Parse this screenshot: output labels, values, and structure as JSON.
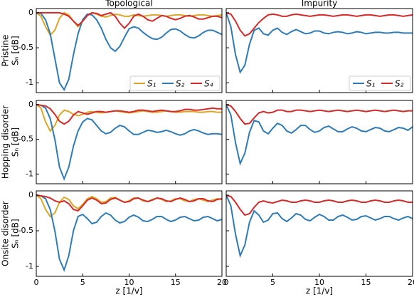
{
  "chart_data": [
    {
      "type": "line",
      "title": "Topological",
      "row_label": "Pristine",
      "ylabel": "Sₙ  [dB]",
      "legend": "lower right",
      "x": [
        0,
        0.5,
        1,
        1.5,
        2,
        2.5,
        3,
        3.5,
        4,
        4.5,
        5,
        5.5,
        6,
        6.5,
        7,
        7.5,
        8,
        8.5,
        9,
        9.5,
        10,
        10.5,
        11,
        11.5,
        12,
        12.5,
        13,
        13.5,
        14,
        14.5,
        15,
        15.5,
        16,
        16.5,
        17,
        17.5,
        18,
        18.5,
        19,
        19.5,
        20
      ],
      "xlim": [
        0,
        20
      ],
      "xticks": [
        0,
        5,
        10,
        15,
        20
      ],
      "ylim": [
        -1.14,
        0.06
      ],
      "yticks": [
        0,
        -0.5,
        -1
      ],
      "series": [
        {
          "name": "S₁",
          "color": "#dba728",
          "values": [
            0,
            -0.05,
            -0.2,
            -0.32,
            -0.25,
            -0.08,
            0,
            -0.03,
            -0.12,
            -0.2,
            -0.12,
            -0.03,
            0,
            -0.02,
            -0.05,
            -0.06,
            -0.04,
            -0.02,
            -0.03,
            -0.05,
            -0.05,
            -0.03,
            -0.04,
            -0.05,
            -0.04,
            -0.03,
            -0.03,
            -0.04,
            -0.05,
            -0.04,
            -0.03,
            -0.03,
            -0.04,
            -0.05,
            -0.04,
            -0.03,
            -0.03,
            -0.04,
            -0.05,
            -0.04,
            -0.03
          ]
        },
        {
          "name": "S₂",
          "color": "#2f7bb6",
          "values": [
            0,
            -0.01,
            -0.1,
            -0.3,
            -0.65,
            -1.0,
            -1.1,
            -0.95,
            -0.6,
            -0.3,
            -0.1,
            -0.02,
            -0.03,
            -0.1,
            -0.22,
            -0.38,
            -0.5,
            -0.55,
            -0.48,
            -0.35,
            -0.23,
            -0.2,
            -0.22,
            -0.28,
            -0.33,
            -0.37,
            -0.38,
            -0.35,
            -0.29,
            -0.24,
            -0.23,
            -0.26,
            -0.31,
            -0.35,
            -0.36,
            -0.33,
            -0.28,
            -0.25,
            -0.25,
            -0.28,
            -0.31
          ]
        },
        {
          "name": "S₄",
          "color": "#d42a2a",
          "values": [
            0,
            0,
            0,
            0,
            0,
            0,
            -0.02,
            -0.05,
            -0.12,
            -0.18,
            -0.12,
            -0.04,
            0,
            -0.01,
            -0.04,
            -0.02,
            0,
            -0.05,
            -0.15,
            -0.22,
            -0.15,
            -0.05,
            -0.02,
            -0.05,
            -0.1,
            -0.12,
            -0.08,
            -0.04,
            -0.05,
            -0.08,
            -0.1,
            -0.08,
            -0.05,
            -0.04,
            -0.06,
            -0.09,
            -0.09,
            -0.07,
            -0.05,
            -0.05,
            -0.07
          ]
        }
      ]
    },
    {
      "type": "line",
      "title": "Impurity",
      "legend": "lower right",
      "x": [
        0,
        0.5,
        1,
        1.5,
        2,
        2.5,
        3,
        3.5,
        4,
        4.5,
        5,
        5.5,
        6,
        6.5,
        7,
        7.5,
        8,
        8.5,
        9,
        9.5,
        10,
        10.5,
        11,
        11.5,
        12,
        12.5,
        13,
        13.5,
        14,
        14.5,
        15,
        15.5,
        16,
        16.5,
        17,
        17.5,
        18,
        18.5,
        19,
        19.5,
        20
      ],
      "xlim": [
        0,
        20
      ],
      "xticks": [
        0,
        5,
        10,
        15,
        20
      ],
      "ylim": [
        -1.14,
        0.06
      ],
      "yticks": [
        0,
        -0.5,
        -1
      ],
      "series": [
        {
          "name": "S₁",
          "color": "#2f7bb6",
          "values": [
            0,
            -0.2,
            -0.6,
            -0.85,
            -0.75,
            -0.45,
            -0.25,
            -0.22,
            -0.3,
            -0.32,
            -0.25,
            -0.22,
            -0.28,
            -0.31,
            -0.27,
            -0.24,
            -0.27,
            -0.3,
            -0.29,
            -0.26,
            -0.26,
            -0.29,
            -0.3,
            -0.28,
            -0.27,
            -0.28,
            -0.3,
            -0.29,
            -0.27,
            -0.28,
            -0.3,
            -0.29,
            -0.28,
            -0.28,
            -0.29,
            -0.29,
            -0.28,
            -0.28,
            -0.29,
            -0.29,
            -0.29
          ]
        },
        {
          "name": "S₂",
          "color": "#d42a2a",
          "values": [
            0,
            -0.02,
            -0.12,
            -0.25,
            -0.33,
            -0.3,
            -0.22,
            -0.14,
            -0.08,
            -0.03,
            -0.02,
            -0.03,
            -0.05,
            -0.05,
            -0.03,
            -0.02,
            -0.03,
            -0.04,
            -0.05,
            -0.04,
            -0.03,
            -0.03,
            -0.04,
            -0.05,
            -0.04,
            -0.03,
            -0.03,
            -0.04,
            -0.05,
            -0.04,
            -0.03,
            -0.03,
            -0.04,
            -0.05,
            -0.04,
            -0.03,
            -0.03,
            -0.04,
            -0.05,
            -0.04,
            -0.03
          ]
        }
      ]
    },
    {
      "type": "line",
      "row_label": "Hopping disorder",
      "ylabel": "Sₙ  [dB]",
      "x": [
        0,
        0.5,
        1,
        1.5,
        2,
        2.5,
        3,
        3.5,
        4,
        4.5,
        5,
        5.5,
        6,
        6.5,
        7,
        7.5,
        8,
        8.5,
        9,
        9.5,
        10,
        10.5,
        11,
        11.5,
        12,
        12.5,
        13,
        13.5,
        14,
        14.5,
        15,
        15.5,
        16,
        16.5,
        17,
        17.5,
        18,
        18.5,
        19,
        19.5,
        20
      ],
      "xlim": [
        0,
        20
      ],
      "xticks": [
        0,
        5,
        10,
        15,
        20
      ],
      "ylim": [
        -1.14,
        0.06
      ],
      "yticks": [
        0,
        -0.5,
        -1
      ],
      "series": [
        {
          "color": "#dba728",
          "values": [
            0,
            -0.05,
            -0.25,
            -0.38,
            -0.3,
            -0.15,
            -0.08,
            -0.1,
            -0.14,
            -0.16,
            -0.14,
            -0.11,
            -0.1,
            -0.11,
            -0.12,
            -0.11,
            -0.1,
            -0.09,
            -0.1,
            -0.11,
            -0.12,
            -0.11,
            -0.1,
            -0.09,
            -0.1,
            -0.11,
            -0.11,
            -0.1,
            -0.09,
            -0.1,
            -0.11,
            -0.11,
            -0.1,
            -0.1,
            -0.1,
            -0.11,
            -0.11,
            -0.1,
            -0.1,
            -0.11,
            -0.11
          ]
        },
        {
          "color": "#2f7bb6",
          "values": [
            0,
            -0.01,
            -0.05,
            -0.2,
            -0.5,
            -0.9,
            -1.07,
            -0.9,
            -0.6,
            -0.38,
            -0.25,
            -0.2,
            -0.22,
            -0.3,
            -0.38,
            -0.42,
            -0.4,
            -0.34,
            -0.3,
            -0.32,
            -0.38,
            -0.43,
            -0.43,
            -0.4,
            -0.37,
            -0.38,
            -0.4,
            -0.39,
            -0.37,
            -0.39,
            -0.42,
            -0.44,
            -0.42,
            -0.38,
            -0.36,
            -0.38,
            -0.41,
            -0.43,
            -0.42,
            -0.42,
            -0.43
          ]
        },
        {
          "color": "#d42a2a",
          "values": [
            0,
            -0.01,
            -0.02,
            -0.06,
            -0.14,
            -0.24,
            -0.28,
            -0.24,
            -0.15,
            -0.1,
            -0.12,
            -0.14,
            -0.12,
            -0.1,
            -0.1,
            -0.11,
            -0.1,
            -0.09,
            -0.09,
            -0.1,
            -0.11,
            -0.1,
            -0.08,
            -0.08,
            -0.09,
            -0.1,
            -0.09,
            -0.08,
            -0.09,
            -0.1,
            -0.1,
            -0.09,
            -0.07,
            -0.07,
            -0.08,
            -0.08,
            -0.07,
            -0.06,
            -0.05,
            -0.06,
            -0.06
          ]
        }
      ]
    },
    {
      "type": "line",
      "x": [
        0,
        0.5,
        1,
        1.5,
        2,
        2.5,
        3,
        3.5,
        4,
        4.5,
        5,
        5.5,
        6,
        6.5,
        7,
        7.5,
        8,
        8.5,
        9,
        9.5,
        10,
        10.5,
        11,
        11.5,
        12,
        12.5,
        13,
        13.5,
        14,
        14.5,
        15,
        15.5,
        16,
        16.5,
        17,
        17.5,
        18,
        18.5,
        19,
        19.5,
        20
      ],
      "xlim": [
        0,
        20
      ],
      "xticks": [
        0,
        5,
        10,
        15,
        20
      ],
      "ylim": [
        -1.14,
        0.06
      ],
      "yticks": [
        0,
        -0.5,
        -1
      ],
      "series": [
        {
          "color": "#2f7bb6",
          "values": [
            0,
            -0.15,
            -0.55,
            -0.85,
            -0.7,
            -0.4,
            -0.23,
            -0.25,
            -0.38,
            -0.42,
            -0.34,
            -0.27,
            -0.3,
            -0.38,
            -0.41,
            -0.36,
            -0.3,
            -0.3,
            -0.36,
            -0.4,
            -0.38,
            -0.33,
            -0.31,
            -0.35,
            -0.39,
            -0.39,
            -0.35,
            -0.32,
            -0.34,
            -0.38,
            -0.39,
            -0.36,
            -0.33,
            -0.34,
            -0.38,
            -0.39,
            -0.36,
            -0.33,
            -0.34,
            -0.37,
            -0.32
          ]
        },
        {
          "color": "#d42a2a",
          "values": [
            0,
            -0.02,
            -0.1,
            -0.2,
            -0.28,
            -0.27,
            -0.19,
            -0.12,
            -0.1,
            -0.12,
            -0.11,
            -0.08,
            -0.08,
            -0.1,
            -0.1,
            -0.08,
            -0.08,
            -0.09,
            -0.1,
            -0.09,
            -0.08,
            -0.09,
            -0.1,
            -0.09,
            -0.08,
            -0.09,
            -0.1,
            -0.09,
            -0.08,
            -0.09,
            -0.1,
            -0.09,
            -0.08,
            -0.09,
            -0.1,
            -0.09,
            -0.08,
            -0.09,
            -0.1,
            -0.09,
            -0.09
          ]
        }
      ]
    },
    {
      "type": "line",
      "row_label": "Onsite disorder",
      "ylabel": "Sₙ  [dB]",
      "xlabel": "z   [1/v]",
      "x": [
        0,
        0.5,
        1,
        1.5,
        2,
        2.5,
        3,
        3.5,
        4,
        4.5,
        5,
        5.5,
        6,
        6.5,
        7,
        7.5,
        8,
        8.5,
        9,
        9.5,
        10,
        10.5,
        11,
        11.5,
        12,
        12.5,
        13,
        13.5,
        14,
        14.5,
        15,
        15.5,
        16,
        16.5,
        17,
        17.5,
        18,
        18.5,
        19,
        19.5,
        20
      ],
      "xlim": [
        0,
        20
      ],
      "xticks": [
        0,
        5,
        10,
        15,
        20
      ],
      "ylim": [
        -1.14,
        0.06
      ],
      "yticks": [
        0,
        -0.5,
        -1
      ],
      "series": [
        {
          "color": "#dba728",
          "values": [
            0,
            -0.05,
            -0.2,
            -0.3,
            -0.25,
            -0.1,
            -0.03,
            -0.06,
            -0.15,
            -0.19,
            -0.13,
            -0.05,
            -0.02,
            -0.05,
            -0.1,
            -0.09,
            -0.04,
            -0.03,
            -0.07,
            -0.1,
            -0.08,
            -0.04,
            -0.04,
            -0.08,
            -0.09,
            -0.06,
            -0.04,
            -0.06,
            -0.09,
            -0.08,
            -0.05,
            -0.05,
            -0.08,
            -0.09,
            -0.06,
            -0.05,
            -0.07,
            -0.09,
            -0.07,
            -0.05,
            -0.06
          ]
        },
        {
          "color": "#2f7bb6",
          "values": [
            0,
            -0.01,
            -0.05,
            -0.2,
            -0.5,
            -0.9,
            -1.05,
            -0.85,
            -0.5,
            -0.3,
            -0.27,
            -0.33,
            -0.4,
            -0.38,
            -0.3,
            -0.25,
            -0.28,
            -0.35,
            -0.39,
            -0.37,
            -0.31,
            -0.28,
            -0.31,
            -0.36,
            -0.37,
            -0.34,
            -0.3,
            -0.3,
            -0.34,
            -0.37,
            -0.35,
            -0.31,
            -0.3,
            -0.33,
            -0.36,
            -0.35,
            -0.31,
            -0.3,
            -0.33,
            -0.36,
            -0.34
          ]
        },
        {
          "color": "#d42a2a",
          "values": [
            0,
            -0.01,
            -0.02,
            -0.04,
            -0.08,
            -0.1,
            -0.08,
            -0.12,
            -0.2,
            -0.22,
            -0.15,
            -0.07,
            -0.04,
            -0.07,
            -0.12,
            -0.11,
            -0.06,
            -0.04,
            -0.07,
            -0.1,
            -0.09,
            -0.05,
            -0.04,
            -0.07,
            -0.09,
            -0.07,
            -0.04,
            -0.05,
            -0.08,
            -0.09,
            -0.06,
            -0.04,
            -0.06,
            -0.09,
            -0.08,
            -0.05,
            -0.05,
            -0.08,
            -0.09,
            -0.06,
            -0.05
          ]
        }
      ]
    },
    {
      "type": "line",
      "xlabel": "z   [1/v]",
      "x": [
        0,
        0.5,
        1,
        1.5,
        2,
        2.5,
        3,
        3.5,
        4,
        4.5,
        5,
        5.5,
        6,
        6.5,
        7,
        7.5,
        8,
        8.5,
        9,
        9.5,
        10,
        10.5,
        11,
        11.5,
        12,
        12.5,
        13,
        13.5,
        14,
        14.5,
        15,
        15.5,
        16,
        16.5,
        17,
        17.5,
        18,
        18.5,
        19,
        19.5,
        20
      ],
      "xlim": [
        0,
        20
      ],
      "xticks": [
        0,
        5,
        10,
        15,
        20
      ],
      "ylim": [
        -1.14,
        0.06
      ],
      "yticks": [
        0,
        -0.5,
        -1
      ],
      "series": [
        {
          "color": "#2f7bb6",
          "values": [
            0,
            -0.15,
            -0.55,
            -0.85,
            -0.7,
            -0.38,
            -0.22,
            -0.28,
            -0.38,
            -0.35,
            -0.26,
            -0.25,
            -0.33,
            -0.37,
            -0.32,
            -0.26,
            -0.28,
            -0.34,
            -0.36,
            -0.31,
            -0.27,
            -0.3,
            -0.35,
            -0.35,
            -0.3,
            -0.28,
            -0.31,
            -0.35,
            -0.34,
            -0.3,
            -0.29,
            -0.32,
            -0.35,
            -0.33,
            -0.3,
            -0.3,
            -0.33,
            -0.35,
            -0.32,
            -0.3,
            -0.33
          ]
        },
        {
          "color": "#d42a2a",
          "values": [
            0,
            -0.02,
            -0.1,
            -0.2,
            -0.28,
            -0.26,
            -0.17,
            -0.1,
            -0.08,
            -0.1,
            -0.11,
            -0.09,
            -0.07,
            -0.08,
            -0.1,
            -0.1,
            -0.08,
            -0.07,
            -0.08,
            -0.1,
            -0.1,
            -0.08,
            -0.07,
            -0.08,
            -0.1,
            -0.1,
            -0.08,
            -0.07,
            -0.08,
            -0.1,
            -0.1,
            -0.08,
            -0.07,
            -0.08,
            -0.1,
            -0.1,
            -0.08,
            -0.07,
            -0.08,
            -0.1,
            -0.1
          ]
        }
      ]
    }
  ]
}
